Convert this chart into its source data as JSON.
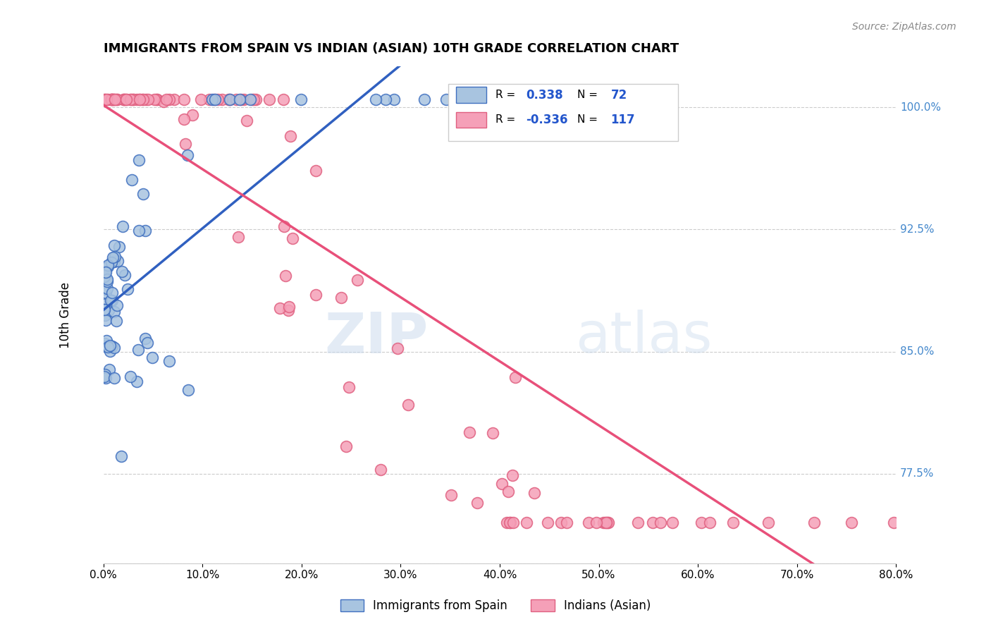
{
  "title": "IMMIGRANTS FROM SPAIN VS INDIAN (ASIAN) 10TH GRADE CORRELATION CHART",
  "source": "Source: ZipAtlas.com",
  "ylabel": "10th Grade",
  "ytick_labels": [
    "100.0%",
    "92.5%",
    "85.0%",
    "77.5%"
  ],
  "ytick_values": [
    1.0,
    0.925,
    0.85,
    0.775
  ],
  "x_min": 0.0,
  "x_max": 0.8,
  "y_min": 0.72,
  "y_max": 1.025,
  "r1": "0.338",
  "n1": "72",
  "r2": "-0.336",
  "n2": "117",
  "color_spain": "#a8c4e0",
  "color_spain_edge": "#4070c0",
  "color_spain_line": "#3060c0",
  "color_india": "#f5a0b8",
  "color_india_edge": "#e06080",
  "color_india_line": "#e8507a",
  "watermark_zip": "ZIP",
  "watermark_atlas": "atlas",
  "legend_label_spain": "Immigrants from Spain",
  "legend_label_india": "Indians (Asian)"
}
